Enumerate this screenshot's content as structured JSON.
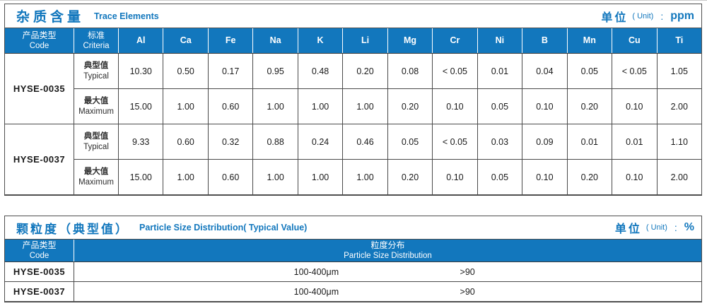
{
  "colors": {
    "accent_blue": "#1277bd",
    "header_background": "#1277bd",
    "header_text": "#ffffff",
    "grid_border": "#4a4a4a"
  },
  "trace_table": {
    "title_zh": "杂质含量",
    "title_en": "Trace Elements",
    "unit": {
      "zh": "单位",
      "paren": "( Unit)",
      "colon": ":",
      "value": "ppm"
    },
    "col_product_zh": "产品类型",
    "col_product_en": "Code",
    "col_criteria_zh": "标准",
    "col_criteria_en": "Criteria",
    "criteria_typical_zh": "典型值",
    "criteria_typical_en": "Typical",
    "criteria_max_zh": "最大值",
    "criteria_max_en": "Maximum",
    "elements": [
      "Al",
      "Ca",
      "Fe",
      "Na",
      "K",
      "Li",
      "Mg",
      "Cr",
      "Ni",
      "B",
      "Mn",
      "Cu",
      "Ti"
    ],
    "rows": [
      {
        "code": "HYSE-0035",
        "typical": [
          "10.30",
          "0.50",
          "0.17",
          "0.95",
          "0.48",
          "0.20",
          "0.08",
          "< 0.05",
          "0.01",
          "0.04",
          "0.05",
          "< 0.05",
          "1.05"
        ],
        "maximum": [
          "15.00",
          "1.00",
          "0.60",
          "1.00",
          "1.00",
          "1.00",
          "0.20",
          "0.10",
          "0.05",
          "0.10",
          "0.20",
          "0.10",
          "2.00"
        ]
      },
      {
        "code": "HYSE-0037",
        "typical": [
          "9.33",
          "0.60",
          "0.32",
          "0.88",
          "0.24",
          "0.46",
          "0.05",
          "< 0.05",
          "0.03",
          "0.09",
          "0.01",
          "0.01",
          "1.10"
        ],
        "maximum": [
          "15.00",
          "1.00",
          "0.60",
          "1.00",
          "1.00",
          "1.00",
          "0.20",
          "0.10",
          "0.05",
          "0.10",
          "0.20",
          "0.10",
          "2.00"
        ]
      }
    ]
  },
  "particle_table": {
    "title_zh": "颗粒度（典型值）",
    "title_en": "Particle Size Distribution( Typical Value)",
    "unit": {
      "zh": "单位",
      "paren": "( Unit)",
      "colon": ":",
      "value": "%"
    },
    "col_product_zh": "产品类型",
    "col_product_en": "Code",
    "col_dist_zh": "粒度分布",
    "col_dist_en": "Particle Size  Distribution",
    "rows": [
      {
        "code": "HYSE-0035",
        "range": "100-400μm",
        "value": ">90"
      },
      {
        "code": "HYSE-0037",
        "range": "100-400μm",
        "value": ">90"
      }
    ]
  }
}
